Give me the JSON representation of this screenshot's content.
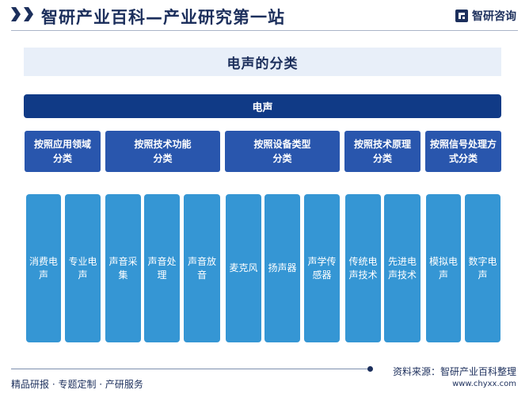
{
  "header": {
    "title": "智研产业百科—产业研究第一站",
    "brand": "智研咨询",
    "brand_icon": "zhiyan-logo-icon"
  },
  "diagram": {
    "title": "电声的分类",
    "root": "电声",
    "categories": [
      {
        "label": "按照应用领域\n分类",
        "leaves": [
          "消费电\n声",
          "专业电\n声"
        ]
      },
      {
        "label": "按照技术功能\n分类",
        "leaves": [
          "声音采\n集",
          "声音处\n理",
          "声音放\n音"
        ]
      },
      {
        "label": "按照设备类型\n分类",
        "leaves": [
          "麦克风",
          "扬声器",
          "声学传\n感器"
        ]
      },
      {
        "label": "按照技术原理\n分类",
        "leaves": [
          "传统电\n声技术",
          "先进电\n声技术"
        ]
      },
      {
        "label": "按照信号处理方\n式分类",
        "leaves": [
          "模拟电\n声",
          "数字电\n声"
        ]
      }
    ]
  },
  "footer": {
    "tagline": "精品研报 · 专题定制 · 产研服务",
    "source": "资料来源：智研产业百科整理",
    "url": "www.chyxx.com"
  },
  "colors": {
    "navy": "#1c2f5c",
    "root": "#103a86",
    "category": "#2956ad",
    "leaf": "#3596d4",
    "title_band": "#e8eff9"
  }
}
